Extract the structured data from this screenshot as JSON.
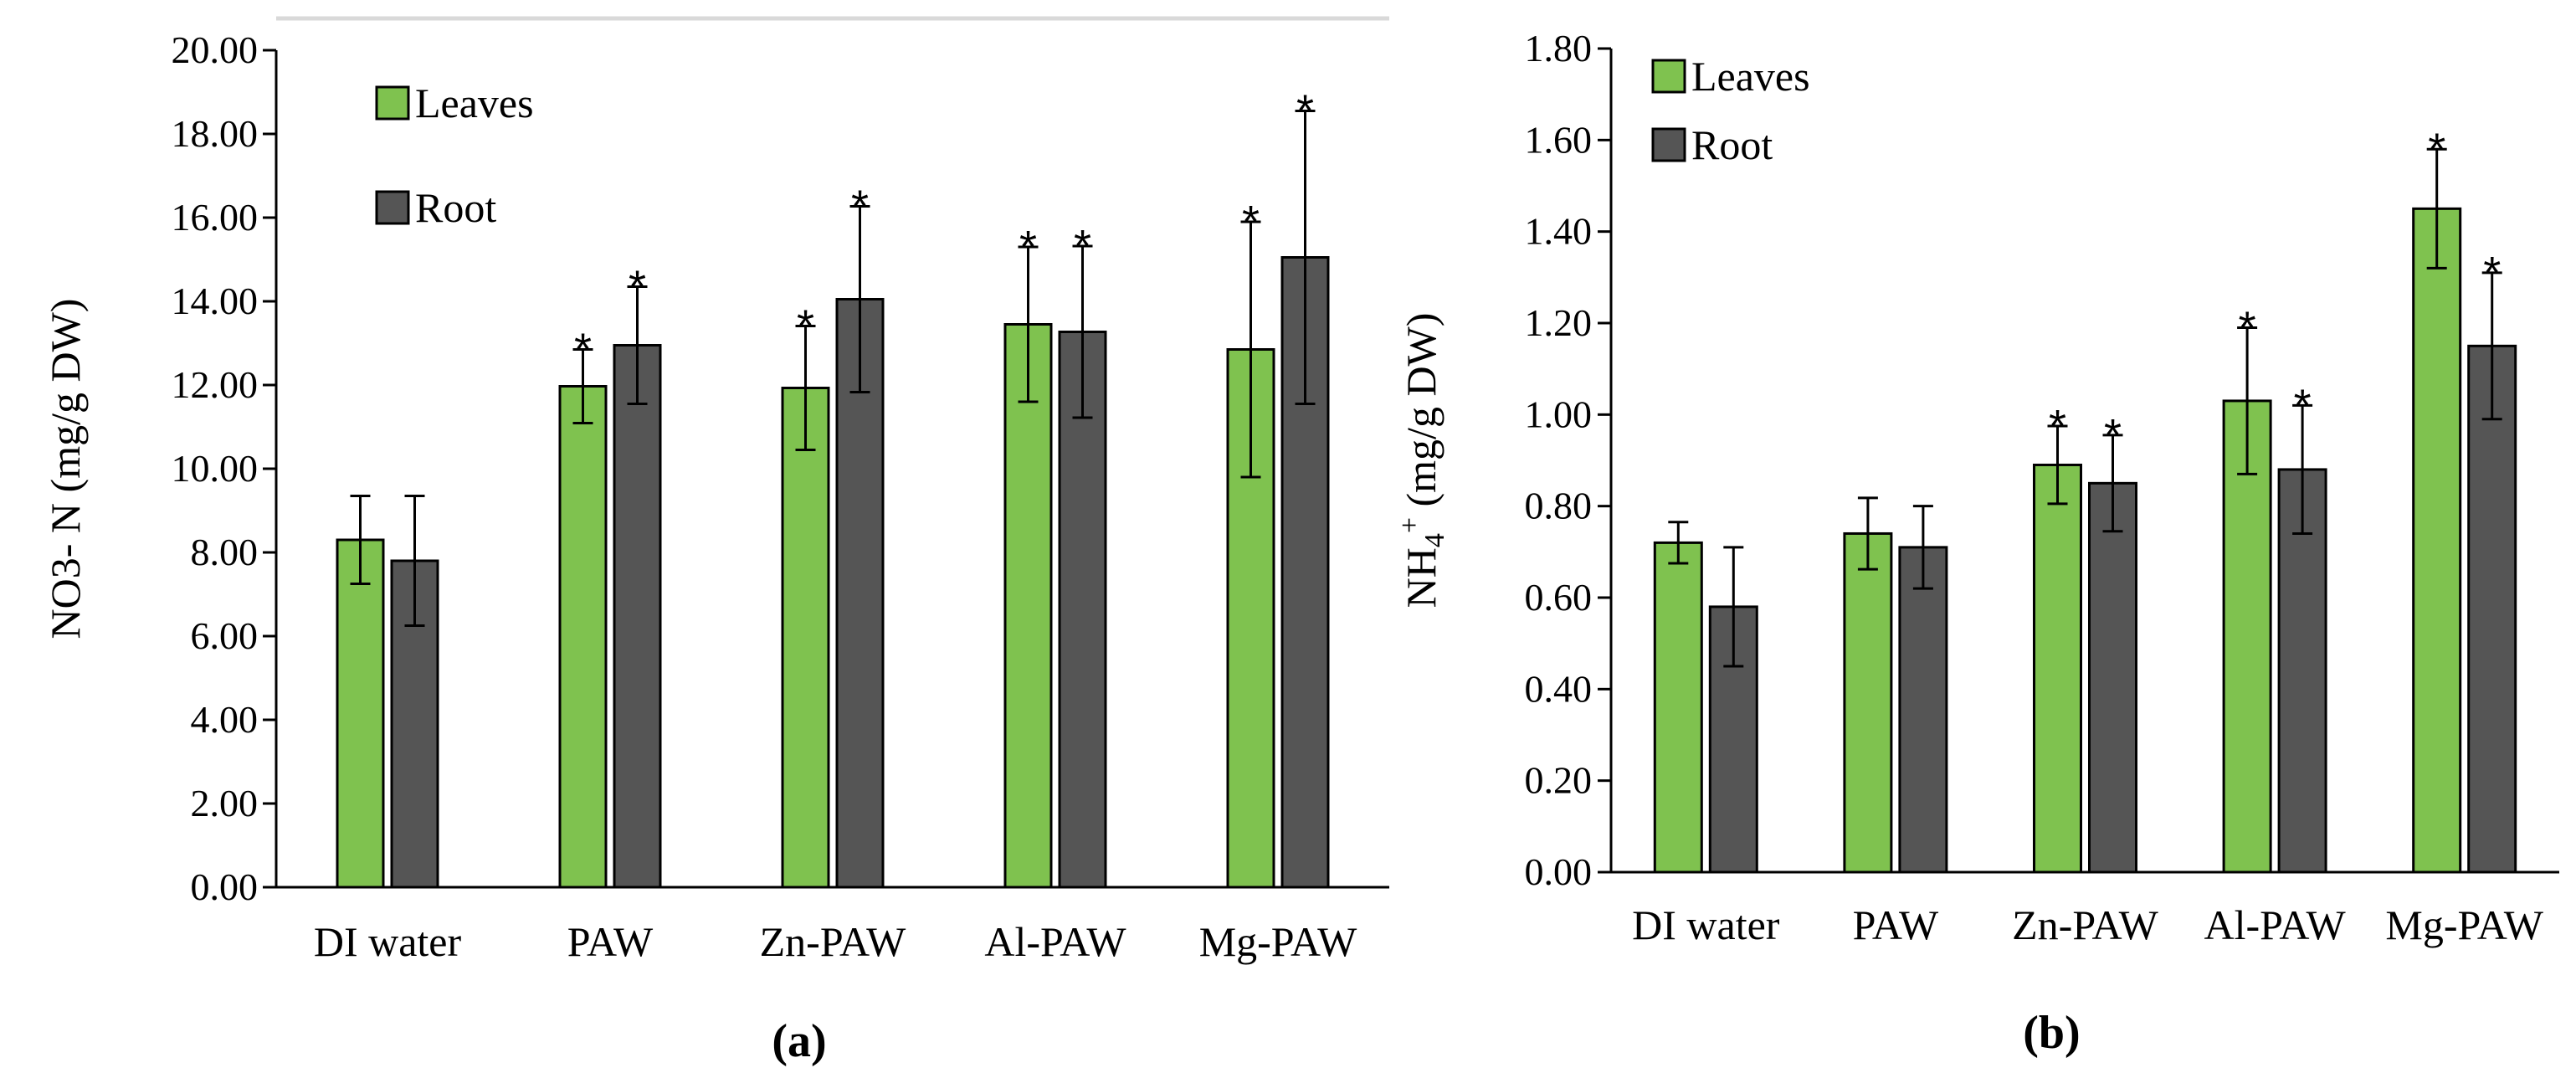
{
  "chart_data": [
    {
      "type": "bar",
      "panel_label": "(a)",
      "ylabel_main": "NO3- N",
      "ylabel_sub": "",
      "ylabel_unit": " (mg/g DW)",
      "ylim": [
        0,
        20
      ],
      "yticks": [
        "0.00",
        "2.00",
        "4.00",
        "6.00",
        "8.00",
        "10.00",
        "12.00",
        "14.00",
        "16.00",
        "18.00",
        "20.00"
      ],
      "categories": [
        "DI water",
        "PAW",
        "Zn-PAW",
        "Al-PAW",
        "Mg-PAW"
      ],
      "series": [
        {
          "name": "Leaves",
          "color": "#7fc24f",
          "values": [
            8.3,
            11.97,
            11.93,
            13.45,
            12.85
          ],
          "errors": [
            1.05,
            0.88,
            1.48,
            1.85,
            3.05
          ],
          "significant": [
            false,
            true,
            true,
            true,
            true
          ]
        },
        {
          "name": "Root",
          "color": "#555555",
          "values": [
            7.8,
            12.95,
            14.05,
            13.27,
            15.05
          ],
          "errors": [
            1.55,
            1.4,
            2.22,
            2.05,
            3.5
          ],
          "significant": [
            false,
            true,
            true,
            true,
            true
          ]
        }
      ],
      "significance_marker": "*"
    },
    {
      "type": "bar",
      "panel_label": "(b)",
      "ylabel_main": "NH",
      "ylabel_sub": "4",
      "ylabel_sup": "+",
      "ylabel_unit": " (mg/g DW)",
      "ylim": [
        0,
        1.8
      ],
      "yticks": [
        "0.00",
        "0.20",
        "0.40",
        "0.60",
        "0.80",
        "1.00",
        "1.20",
        "1.40",
        "1.60",
        "1.80"
      ],
      "categories": [
        "DI water",
        "PAW",
        "Zn-PAW",
        "Al-PAW",
        "Mg-PAW"
      ],
      "series": [
        {
          "name": "Leaves",
          "color": "#7fc24f",
          "values": [
            0.72,
            0.74,
            0.89,
            1.03,
            1.45
          ],
          "errors": [
            0.045,
            0.078,
            0.085,
            0.16,
            0.13
          ],
          "significant": [
            false,
            false,
            true,
            true,
            true
          ]
        },
        {
          "name": "Root",
          "color": "#555555",
          "values": [
            0.58,
            0.71,
            0.85,
            0.88,
            1.15
          ],
          "errors": [
            0.13,
            0.09,
            0.105,
            0.14,
            0.16
          ],
          "significant": [
            false,
            false,
            true,
            true,
            true
          ]
        }
      ],
      "significance_marker": "*"
    }
  ]
}
